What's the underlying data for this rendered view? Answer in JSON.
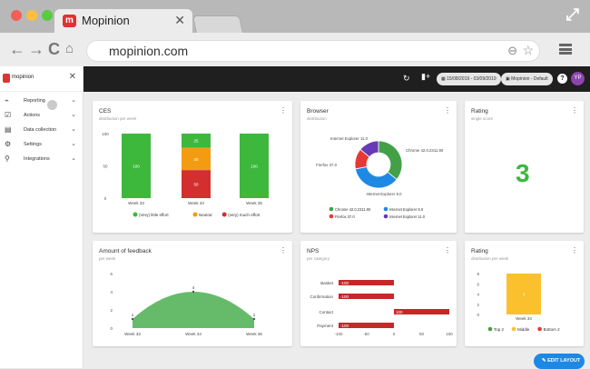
{
  "browser": {
    "tab_title": "Mopinion",
    "tab_logo": "m",
    "url": "mopinion.com"
  },
  "sidebar": {
    "brand": "mopinion",
    "items": [
      {
        "label": "Reporting",
        "icon": "chart-icon"
      },
      {
        "label": "Actions",
        "icon": "checkbox-icon"
      },
      {
        "label": "Data collection",
        "icon": "form-icon"
      },
      {
        "label": "Settings",
        "icon": "gear-icon"
      },
      {
        "label": "Integrations",
        "icon": "plug-icon"
      }
    ]
  },
  "appbar": {
    "date_range": "15/08/2019 - 03/09/2019",
    "project": "Mopinion - Default",
    "avatar": "YP"
  },
  "cards": {
    "ces": {
      "title": "CES",
      "subtitle": "distribution per week"
    },
    "browser": {
      "title": "Browser",
      "subtitle": "distribution"
    },
    "rating1": {
      "title": "Rating",
      "subtitle": "single score",
      "value": "3"
    },
    "feedback": {
      "title": "Amount of feedback",
      "subtitle": "per week"
    },
    "nps": {
      "title": "NPS",
      "subtitle": "per category"
    },
    "rating2": {
      "title": "Rating",
      "subtitle": "distribution per week"
    }
  },
  "edit_button": "EDIT LAYOUT",
  "chart_data": [
    {
      "type": "bar",
      "id": "ces",
      "stacked": true,
      "categories": [
        "Week 33",
        "Week 34",
        "Week 36"
      ],
      "ylim": [
        0,
        100
      ],
      "yticks": [
        0,
        50,
        100
      ],
      "series": [
        {
          "name": "(Very) little effort",
          "color": "#3db83d",
          "values": [
            100,
            25,
            100
          ]
        },
        {
          "name": "Neutral",
          "color": "#f39c12",
          "values": [
            0,
            40,
            0
          ]
        },
        {
          "name": "(very) much effort",
          "color": "#d32f2f",
          "values": [
            0,
            50,
            0
          ]
        }
      ],
      "bar_labels": [
        [
          "100"
        ],
        [
          "25",
          "40",
          "50"
        ],
        [
          "100"
        ]
      ]
    },
    {
      "type": "pie",
      "id": "browser",
      "donut": true,
      "slices": [
        {
          "name": "Chrome 42.0.2311.90",
          "value": 36,
          "color": "#43a047"
        },
        {
          "name": "Internet Explorer 9.0",
          "value": 36,
          "color": "#1e88e5"
        },
        {
          "name": "Firefox 37.0",
          "value": 14,
          "color": "#e53935"
        },
        {
          "name": "Internet Explorer 11.0",
          "value": 14,
          "color": "#673ab7"
        }
      ],
      "legend": [
        "Chrome 42.0.2311.90",
        "Internet Explorer 9.0",
        "Firefox 37.0",
        "Internet Explorer 11.0"
      ]
    },
    {
      "type": "area",
      "id": "feedback",
      "categories": [
        "Week 33",
        "Week 34",
        "Week 36"
      ],
      "values": [
        1,
        4,
        1
      ],
      "point_labels": [
        "1",
        "4",
        "1"
      ],
      "ylim": [
        0,
        6
      ],
      "yticks": [
        0,
        2,
        4,
        6
      ],
      "color": "#66bb6a"
    },
    {
      "type": "bar",
      "id": "nps",
      "horizontal": true,
      "categories": [
        "Basket",
        "Confirmation",
        "Contact",
        "Payment"
      ],
      "values": [
        -100,
        -100,
        100,
        -100
      ],
      "labels": [
        "-100",
        "-100",
        "100",
        "-100"
      ],
      "xlim": [
        -100,
        100
      ],
      "xticks": [
        "-100",
        "-50",
        "0",
        "50",
        "100"
      ],
      "color": "#c62828"
    },
    {
      "type": "heatmap",
      "id": "rating2",
      "categories": [
        "Week 34"
      ],
      "ylim": [
        0,
        8
      ],
      "yticks": [
        0,
        2,
        4,
        6,
        8
      ],
      "value": 3,
      "value_label": "3",
      "legend": [
        {
          "name": "Top 2",
          "color": "#43a047"
        },
        {
          "name": "Middle",
          "color": "#fbc02d"
        },
        {
          "name": "Bottom 2",
          "color": "#e53935"
        }
      ]
    }
  ]
}
